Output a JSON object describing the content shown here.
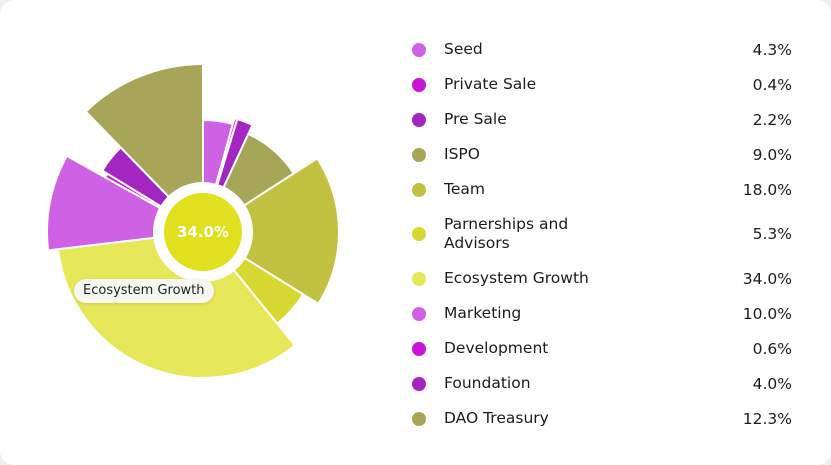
{
  "chart_data": {
    "type": "pie",
    "center_label": "34.0%",
    "highlighted": "Ecosystem Growth",
    "series": [
      {
        "name": "Seed",
        "value": 4.3,
        "label": "4.3%",
        "color": "#cf62e4"
      },
      {
        "name": "Private Sale",
        "value": 0.4,
        "label": "0.4%",
        "color": "#cc14d6"
      },
      {
        "name": "Pre Sale",
        "value": 2.2,
        "label": "2.2%",
        "color": "#a426c0"
      },
      {
        "name": "ISPO",
        "value": 9.0,
        "label": "9.0%",
        "color": "#a7a658"
      },
      {
        "name": "Team",
        "value": 18.0,
        "label": "18.0%",
        "color": "#c1c242"
      },
      {
        "name": "Parnerships and Advisors",
        "value": 5.3,
        "label": "5.3%",
        "color": "#d8d832"
      },
      {
        "name": "Ecosystem Growth",
        "value": 34.0,
        "label": "34.0%",
        "color": "#e7e75a"
      },
      {
        "name": "Marketing",
        "value": 10.0,
        "label": "10.0%",
        "color": "#cf62e4"
      },
      {
        "name": "Development",
        "value": 0.6,
        "label": "0.6%",
        "color": "#cc14d6"
      },
      {
        "name": "Foundation",
        "value": 4.0,
        "label": "4.0%",
        "color": "#a426c0"
      },
      {
        "name": "DAO Treasury",
        "value": 12.3,
        "label": "12.3%",
        "color": "#a7a658"
      }
    ]
  },
  "center_fill": "#e0e01e",
  "tooltip": {
    "text": "Ecosystem Growth"
  }
}
